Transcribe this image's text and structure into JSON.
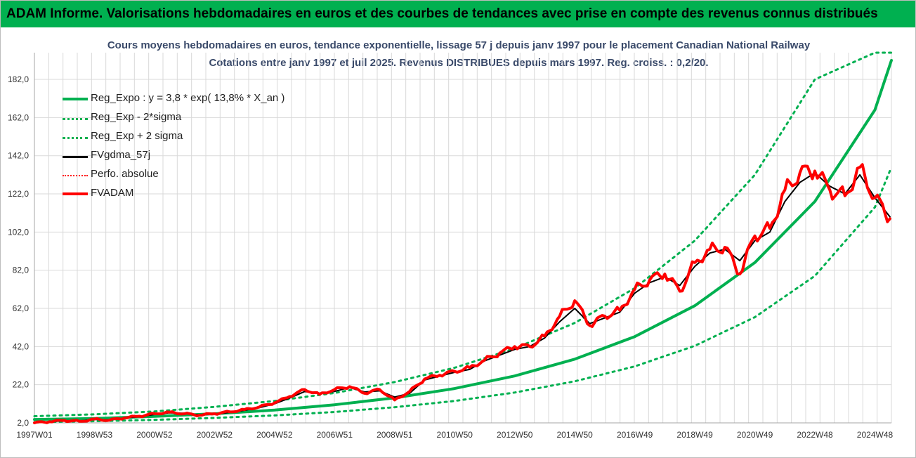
{
  "banner": {
    "title": "ADAM Informe. Valorisations hebdomadaires en euros et des courbes de tendances avec prise en compte des revenus connus distribués"
  },
  "chart_data": {
    "type": "line",
    "title": "Cours moyens hebdomadaires en euros, tendance exponentielle, lissage 57 j depuis janv 1997 pour le placement Canadian National Railway",
    "subtitle": "Cotations entre janv 1997 et juil 2025. Revenus DISTRIBUES depuis mars 1997. Reg. croiss. : 0,2/20.",
    "xlabel": "",
    "ylabel": "",
    "x_tick_labels": [
      "1997W01",
      "1998W53",
      "2000W52",
      "2002W52",
      "2004W52",
      "2006W51",
      "2008W51",
      "2010W50",
      "2012W50",
      "2014W50",
      "2016W49",
      "2018W49",
      "2020W49",
      "2022W48",
      "2024W48"
    ],
    "x_tick_years": [
      1997.0,
      1999.0,
      2001.0,
      2003.0,
      2005.0,
      2007.0,
      2009.0,
      2011.0,
      2013.0,
      2015.0,
      2017.0,
      2019.0,
      2021.0,
      2023.0,
      2025.0
    ],
    "xlim": [
      1997.0,
      2025.55
    ],
    "ylim": [
      2,
      196
    ],
    "y_ticks": [
      2,
      22,
      42,
      62,
      82,
      102,
      122,
      142,
      162,
      182
    ],
    "y_tick_labels": [
      "2,0",
      "22,0",
      "42,0",
      "62,0",
      "82,0",
      "102,0",
      "122,0",
      "142,0",
      "162,0",
      "182,0"
    ],
    "grid": true,
    "legend_position": "top-left",
    "series": [
      {
        "name": "Reg_Expo : y = 3,8 * exp( 13,8% *  X_an )",
        "color": "#00b050",
        "style": "solid-thick",
        "x": [
          1997,
          1999,
          2001,
          2003,
          2005,
          2007,
          2009,
          2011,
          2013,
          2015,
          2017,
          2019,
          2021,
          2023,
          2025,
          2025.55
        ],
        "values": [
          3.8,
          4.3,
          5.4,
          6.8,
          8.7,
          11.5,
          15.1,
          20.0,
          26.6,
          35.4,
          47.2,
          63.4,
          86.0,
          118.0,
          166.0,
          192.0
        ]
      },
      {
        "name": "Reg_Exp - 2*sigma",
        "color": "#00b050",
        "style": "dotted",
        "x": [
          1997,
          1999,
          2001,
          2003,
          2005,
          2007,
          2009,
          2011,
          2013,
          2015,
          2017,
          2019,
          2021,
          2023,
          2025,
          2025.55
        ],
        "values": [
          2.4,
          2.9,
          3.6,
          4.6,
          5.9,
          7.7,
          10.2,
          13.5,
          17.9,
          23.8,
          31.6,
          42.4,
          57.4,
          79.0,
          115.0,
          136.0
        ]
      },
      {
        "name": "Reg_Exp + 2 sigma",
        "color": "#00b050",
        "style": "dotted",
        "x": [
          1997,
          1999,
          2001,
          2003,
          2005,
          2007,
          2009,
          2011,
          2013,
          2015,
          2017,
          2019,
          2021,
          2023,
          2025,
          2025.55
        ],
        "values": [
          5.5,
          6.5,
          8.0,
          10.4,
          13.5,
          17.7,
          23.4,
          30.9,
          41.0,
          54.4,
          72.6,
          97.5,
          132.0,
          182.0,
          198.0,
          198.0
        ]
      },
      {
        "name": "FVgdma_57j",
        "color": "#000000",
        "style": "solid",
        "x": [
          1997.0,
          1997.5,
          1998.0,
          1998.5,
          1999.0,
          1999.5,
          2000.0,
          2000.5,
          2001.0,
          2001.5,
          2002.0,
          2002.5,
          2003.0,
          2003.5,
          2004.0,
          2004.5,
          2005.0,
          2005.5,
          2006.0,
          2006.5,
          2007.0,
          2007.5,
          2008.0,
          2008.5,
          2009.0,
          2009.5,
          2010.0,
          2010.5,
          2011.0,
          2011.5,
          2012.0,
          2012.5,
          2013.0,
          2013.5,
          2014.0,
          2014.5,
          2015.0,
          2015.5,
          2016.0,
          2016.5,
          2017.0,
          2017.5,
          2018.0,
          2018.5,
          2019.0,
          2019.5,
          2020.0,
          2020.5,
          2021.0,
          2021.5,
          2022.0,
          2022.5,
          2023.0,
          2023.5,
          2024.0,
          2024.5,
          2025.0,
          2025.5
        ],
        "values": [
          2.0,
          2.5,
          3.2,
          3.0,
          3.8,
          3.6,
          4.5,
          5.2,
          6.4,
          7.3,
          7.0,
          6.2,
          6.5,
          7.5,
          8.6,
          10.0,
          12.0,
          15.0,
          18.4,
          17.5,
          18.5,
          20.5,
          18.2,
          18.8,
          15.5,
          17.5,
          24.5,
          26.5,
          28.5,
          30.0,
          34.5,
          37.5,
          40.5,
          42.0,
          46.5,
          55.0,
          62.0,
          54.0,
          57.0,
          60.0,
          70.0,
          75.5,
          78.5,
          74.0,
          84.0,
          91.0,
          93.0,
          87.0,
          97.5,
          102.0,
          118.0,
          128.0,
          133.0,
          126.0,
          122.0,
          132.0,
          120.0,
          110.0
        ]
      },
      {
        "name": "Perfo. absolue",
        "color": "#ff0000",
        "style": "dotted",
        "x": [],
        "values": []
      },
      {
        "name": "FVADAM",
        "color": "#ff0000",
        "style": "solid-thick",
        "x": [
          1997.0,
          1997.5,
          1998.0,
          1998.5,
          1999.0,
          1999.5,
          2000.0,
          2000.5,
          2001.0,
          2001.5,
          2002.0,
          2002.5,
          2003.0,
          2003.5,
          2004.0,
          2004.5,
          2005.0,
          2005.5,
          2006.0,
          2006.5,
          2007.0,
          2007.5,
          2008.0,
          2008.5,
          2009.0,
          2009.5,
          2010.0,
          2010.5,
          2011.0,
          2011.5,
          2012.0,
          2012.5,
          2013.0,
          2013.5,
          2014.0,
          2014.5,
          2015.0,
          2015.5,
          2016.0,
          2016.5,
          2017.0,
          2017.5,
          2018.0,
          2018.5,
          2019.0,
          2019.5,
          2020.0,
          2020.5,
          2021.0,
          2021.5,
          2022.0,
          2022.5,
          2023.0,
          2023.5,
          2024.0,
          2024.5,
          2025.0,
          2025.5
        ],
        "values": [
          2.0,
          2.6,
          3.3,
          2.8,
          4.0,
          3.4,
          4.6,
          5.5,
          6.8,
          7.6,
          6.8,
          6.0,
          6.8,
          7.8,
          9.0,
          10.4,
          12.5,
          15.8,
          19.5,
          17.0,
          19.5,
          21.0,
          17.5,
          19.5,
          14.0,
          18.5,
          25.0,
          27.0,
          29.0,
          31.0,
          35.0,
          38.5,
          42.0,
          42.0,
          47.5,
          58.0,
          66.0,
          53.0,
          58.0,
          61.0,
          72.0,
          77.0,
          80.0,
          71.0,
          86.0,
          93.0,
          94.0,
          80.0,
          100.0,
          104.0,
          124.0,
          133.0,
          134.0,
          124.0,
          121.0,
          136.0,
          120.0,
          109.0
        ]
      }
    ]
  }
}
